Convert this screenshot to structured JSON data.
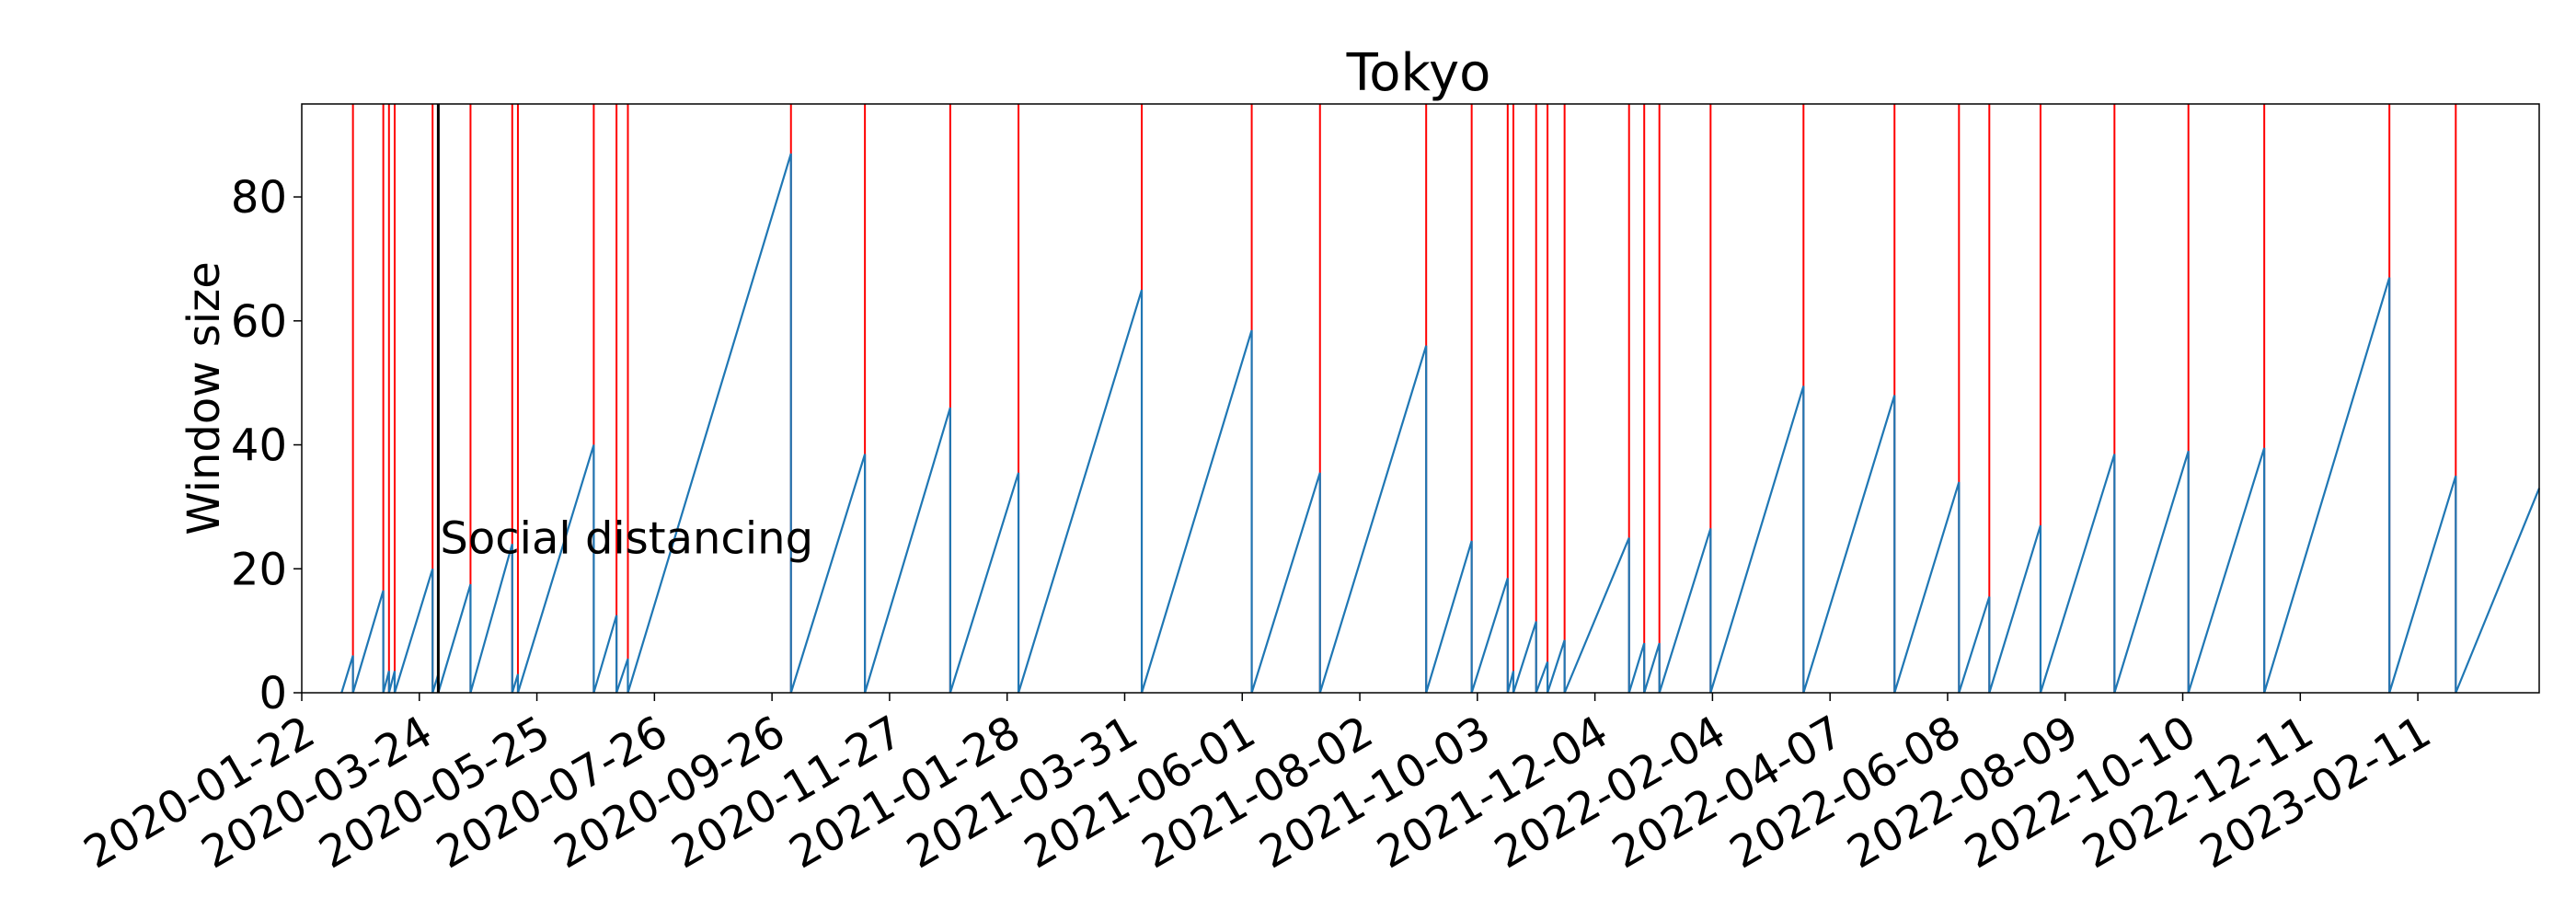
{
  "chart_data": {
    "type": "line",
    "title": "Tokyo",
    "xlabel": "",
    "ylabel": "Window size",
    "x_axis": {
      "type": "date",
      "start": "2020-01-22",
      "end": "2023-04-16"
    },
    "ylim": [
      0,
      95
    ],
    "yticks": [
      0,
      20,
      40,
      60,
      80
    ],
    "xtick_labels": [
      "2020-01-22",
      "2020-03-24",
      "2020-05-25",
      "2020-07-26",
      "2020-09-26",
      "2020-11-27",
      "2021-01-28",
      "2021-03-31",
      "2021-06-01",
      "2021-08-02",
      "2021-10-03",
      "2021-12-04",
      "2022-02-04",
      "2022-04-07",
      "2022-06-08",
      "2022-08-09",
      "2022-10-10",
      "2022-12-11",
      "2023-02-11"
    ],
    "grid": false,
    "series": [
      {
        "color": "#1f77b4",
        "points": [
          [
            "2020-02-12",
            0
          ],
          [
            "2020-02-18",
            6
          ],
          [
            "2020-02-18",
            0
          ],
          [
            "2020-03-05",
            16.5
          ],
          [
            "2020-03-05",
            0
          ],
          [
            "2020-03-08",
            3.5
          ],
          [
            "2020-03-08",
            0
          ],
          [
            "2020-03-11",
            3.5
          ],
          [
            "2020-03-11",
            0
          ],
          [
            "2020-03-31",
            20
          ],
          [
            "2020-03-31",
            0
          ],
          [
            "2020-04-03",
            3
          ],
          [
            "2020-04-03",
            0
          ],
          [
            "2020-04-20",
            17.5
          ],
          [
            "2020-04-20",
            0
          ],
          [
            "2020-05-12",
            24
          ],
          [
            "2020-05-12",
            0
          ],
          [
            "2020-05-15",
            3
          ],
          [
            "2020-05-15",
            0
          ],
          [
            "2020-06-24",
            40
          ],
          [
            "2020-06-24",
            0
          ],
          [
            "2020-07-06",
            12.5
          ],
          [
            "2020-07-06",
            0
          ],
          [
            "2020-07-12",
            5.5
          ],
          [
            "2020-07-12",
            0
          ],
          [
            "2020-10-06",
            87
          ],
          [
            "2020-10-06",
            0
          ],
          [
            "2020-11-14",
            38.5
          ],
          [
            "2020-11-14",
            0
          ],
          [
            "2020-12-29",
            46
          ],
          [
            "2020-12-29",
            0
          ],
          [
            "2021-02-03",
            35.5
          ],
          [
            "2021-02-03",
            0
          ],
          [
            "2021-04-09",
            65
          ],
          [
            "2021-04-09",
            0
          ],
          [
            "2021-06-06",
            58.5
          ],
          [
            "2021-06-06",
            0
          ],
          [
            "2021-07-12",
            35.5
          ],
          [
            "2021-07-12",
            0
          ],
          [
            "2021-09-06",
            56
          ],
          [
            "2021-09-06",
            0
          ],
          [
            "2021-09-30",
            24.5
          ],
          [
            "2021-09-30",
            0
          ],
          [
            "2021-10-19",
            18.5
          ],
          [
            "2021-10-19",
            0
          ],
          [
            "2021-10-22",
            3.5
          ],
          [
            "2021-10-22",
            0
          ],
          [
            "2021-11-03",
            11.5
          ],
          [
            "2021-11-03",
            0
          ],
          [
            "2021-11-09",
            5
          ],
          [
            "2021-11-09",
            0
          ],
          [
            "2021-11-18",
            8.5
          ],
          [
            "2021-11-18",
            0
          ],
          [
            "2021-12-22",
            25
          ],
          [
            "2021-12-22",
            0
          ],
          [
            "2021-12-30",
            8
          ],
          [
            "2021-12-30",
            0
          ],
          [
            "2022-01-07",
            8
          ],
          [
            "2022-01-07",
            0
          ],
          [
            "2022-02-03",
            26.5
          ],
          [
            "2022-02-03",
            0
          ],
          [
            "2022-03-24",
            49.5
          ],
          [
            "2022-03-24",
            0
          ],
          [
            "2022-05-11",
            48
          ],
          [
            "2022-05-11",
            0
          ],
          [
            "2022-06-14",
            34
          ],
          [
            "2022-06-14",
            0
          ],
          [
            "2022-06-30",
            15.5
          ],
          [
            "2022-06-30",
            0
          ],
          [
            "2022-07-27",
            27
          ],
          [
            "2022-07-27",
            0
          ],
          [
            "2022-09-04",
            38.5
          ],
          [
            "2022-09-04",
            0
          ],
          [
            "2022-10-13",
            39
          ],
          [
            "2022-10-13",
            0
          ],
          [
            "2022-11-22",
            39.5
          ],
          [
            "2022-11-22",
            0
          ],
          [
            "2023-01-27",
            67
          ],
          [
            "2023-01-27",
            0
          ],
          [
            "2023-03-03",
            35
          ],
          [
            "2023-03-03",
            0
          ],
          [
            "2023-04-16",
            33
          ]
        ]
      }
    ],
    "event_lines": {
      "color": "#ff0000",
      "dates": [
        "2020-02-18",
        "2020-03-05",
        "2020-03-08",
        "2020-03-11",
        "2020-03-31",
        "2020-04-20",
        "2020-05-12",
        "2020-05-15",
        "2020-06-24",
        "2020-07-06",
        "2020-07-12",
        "2020-10-06",
        "2020-11-14",
        "2020-12-29",
        "2021-02-03",
        "2021-04-09",
        "2021-06-06",
        "2021-07-12",
        "2021-09-06",
        "2021-09-30",
        "2021-10-19",
        "2021-10-22",
        "2021-11-03",
        "2021-11-09",
        "2021-11-18",
        "2021-12-22",
        "2021-12-30",
        "2022-01-07",
        "2022-02-03",
        "2022-03-24",
        "2022-05-11",
        "2022-06-14",
        "2022-06-30",
        "2022-07-27",
        "2022-09-04",
        "2022-10-13",
        "2022-11-22",
        "2023-01-27",
        "2023-03-03"
      ]
    },
    "annotations": [
      {
        "text": "Social distancing",
        "date": "2020-04-03",
        "y": 25,
        "line_color": "#000000"
      }
    ]
  }
}
